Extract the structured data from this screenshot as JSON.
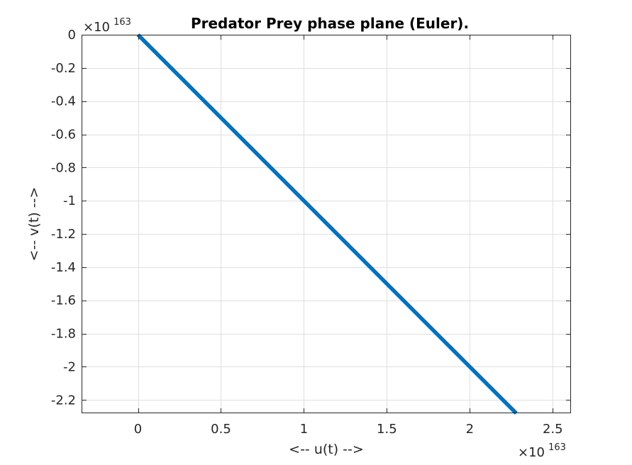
{
  "chart_data": {
    "type": "line",
    "title": "Predator Prey phase plane (Euler).",
    "xlabel": "<-- u(t) -->",
    "ylabel": "<-- v(t) -->",
    "x_multiplier": {
      "base": "×10",
      "exponent": "163"
    },
    "y_multiplier": {
      "base": "×10",
      "exponent": "163"
    },
    "xlim": [
      -0.34,
      2.61
    ],
    "ylim": [
      -2.28,
      0
    ],
    "xticks": [
      0,
      0.5,
      1,
      1.5,
      2,
      2.5
    ],
    "xtick_labels": [
      "0",
      "0.5",
      "1",
      "1.5",
      "2",
      "2.5"
    ],
    "yticks": [
      0,
      -0.2,
      -0.4,
      -0.6,
      -0.8,
      -1,
      -1.2,
      -1.4,
      -1.6,
      -1.8,
      -2,
      -2.2
    ],
    "ytick_labels": [
      "0",
      "-0.2",
      "-0.4",
      "-0.6",
      "-0.8",
      "-1",
      "-1.2",
      "-1.4",
      "-1.6",
      "-1.8",
      "-2",
      "-2.2"
    ],
    "grid": true,
    "box": true,
    "series": [
      {
        "color": "#0072bd",
        "x": [
          0,
          2.28
        ],
        "y": [
          0,
          -2.28
        ]
      }
    ]
  }
}
